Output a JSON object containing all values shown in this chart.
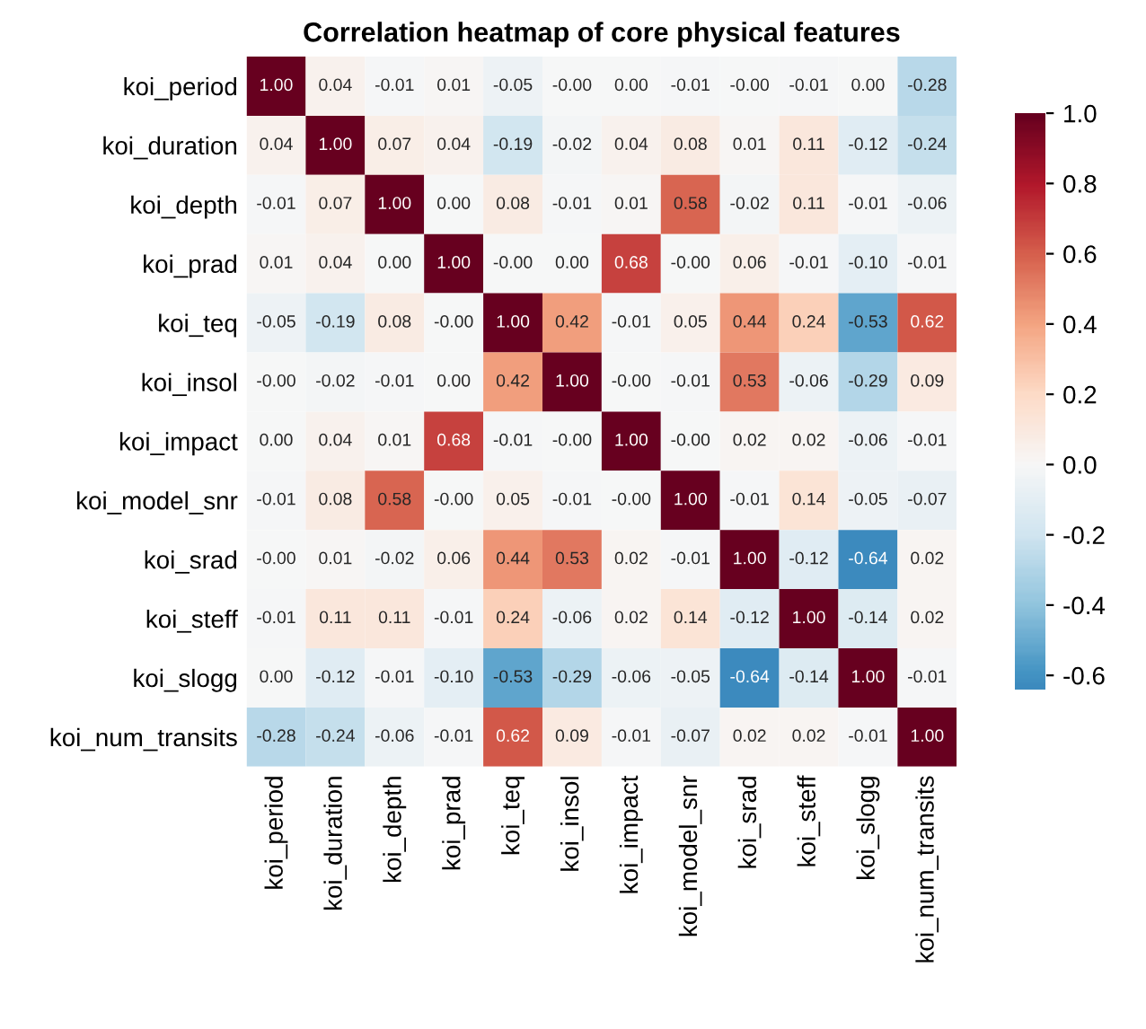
{
  "chart_data": {
    "type": "heatmap",
    "title": "Correlation heatmap of core physical features",
    "categories": [
      "koi_period",
      "koi_duration",
      "koi_depth",
      "koi_prad",
      "koi_teq",
      "koi_insol",
      "koi_impact",
      "koi_model_snr",
      "koi_srad",
      "koi_steff",
      "koi_slogg",
      "koi_num_transits"
    ],
    "y_categories": [
      "koi_period",
      "koi_duration",
      "koi_depth",
      "koi_prad",
      "koi_teq",
      "koi_insol",
      "koi_impact",
      "koi_model_snr",
      "koi_srad",
      "koi_steff",
      "koi_slogg",
      "koi_num_transits"
    ],
    "cells": [
      [
        1.0,
        0.04,
        -0.01,
        0.01,
        -0.05,
        0.0,
        0.0,
        -0.01,
        0.0,
        -0.01,
        0.0,
        -0.28
      ],
      [
        0.04,
        1.0,
        0.07,
        0.04,
        -0.19,
        -0.02,
        0.04,
        0.08,
        0.01,
        0.11,
        -0.12,
        -0.24
      ],
      [
        -0.01,
        0.07,
        1.0,
        0.0,
        0.08,
        -0.01,
        0.01,
        0.58,
        -0.02,
        0.11,
        -0.01,
        -0.06
      ],
      [
        0.01,
        0.04,
        0.0,
        1.0,
        0.0,
        0.0,
        0.68,
        0.0,
        0.06,
        -0.01,
        -0.1,
        -0.01
      ],
      [
        -0.05,
        -0.19,
        0.08,
        0.0,
        1.0,
        0.42,
        -0.01,
        0.05,
        0.44,
        0.24,
        -0.53,
        0.62
      ],
      [
        0.0,
        -0.02,
        -0.01,
        0.0,
        0.42,
        1.0,
        0.0,
        -0.01,
        0.53,
        -0.06,
        -0.29,
        0.09
      ],
      [
        0.0,
        0.04,
        0.01,
        0.68,
        -0.01,
        0.0,
        1.0,
        0.0,
        0.02,
        0.02,
        -0.06,
        -0.01
      ],
      [
        -0.01,
        0.08,
        0.58,
        0.0,
        0.05,
        -0.01,
        0.0,
        1.0,
        -0.01,
        0.14,
        -0.05,
        -0.07
      ],
      [
        0.0,
        0.01,
        -0.02,
        0.06,
        0.44,
        0.53,
        0.02,
        -0.01,
        1.0,
        -0.12,
        -0.64,
        0.02
      ],
      [
        -0.01,
        0.11,
        0.11,
        -0.01,
        0.24,
        -0.06,
        0.02,
        0.14,
        -0.12,
        1.0,
        -0.14,
        0.02
      ],
      [
        0.0,
        -0.12,
        -0.01,
        -0.1,
        -0.53,
        -0.29,
        -0.06,
        -0.05,
        -0.64,
        -0.14,
        1.0,
        -0.01
      ],
      [
        -0.28,
        -0.24,
        -0.06,
        -0.01,
        0.62,
        0.09,
        -0.01,
        -0.07,
        0.02,
        0.02,
        -0.01,
        1.0
      ]
    ],
    "cell_labels": [
      [
        "1.00",
        "0.04",
        "-0.01",
        "0.01",
        "-0.05",
        "-0.00",
        "0.00",
        "-0.01",
        "-0.00",
        "-0.01",
        "0.00",
        "-0.28"
      ],
      [
        "0.04",
        "1.00",
        "0.07",
        "0.04",
        "-0.19",
        "-0.02",
        "0.04",
        "0.08",
        "0.01",
        "0.11",
        "-0.12",
        "-0.24"
      ],
      [
        "-0.01",
        "0.07",
        "1.00",
        "0.00",
        "0.08",
        "-0.01",
        "0.01",
        "0.58",
        "-0.02",
        "0.11",
        "-0.01",
        "-0.06"
      ],
      [
        "0.01",
        "0.04",
        "0.00",
        "1.00",
        "-0.00",
        "0.00",
        "0.68",
        "-0.00",
        "0.06",
        "-0.01",
        "-0.10",
        "-0.01"
      ],
      [
        "-0.05",
        "-0.19",
        "0.08",
        "-0.00",
        "1.00",
        "0.42",
        "-0.01",
        "0.05",
        "0.44",
        "0.24",
        "-0.53",
        "0.62"
      ],
      [
        "-0.00",
        "-0.02",
        "-0.01",
        "0.00",
        "0.42",
        "1.00",
        "-0.00",
        "-0.01",
        "0.53",
        "-0.06",
        "-0.29",
        "0.09"
      ],
      [
        "0.00",
        "0.04",
        "0.01",
        "0.68",
        "-0.01",
        "-0.00",
        "1.00",
        "-0.00",
        "0.02",
        "0.02",
        "-0.06",
        "-0.01"
      ],
      [
        "-0.01",
        "0.08",
        "0.58",
        "-0.00",
        "0.05",
        "-0.01",
        "-0.00",
        "1.00",
        "-0.01",
        "0.14",
        "-0.05",
        "-0.07"
      ],
      [
        "-0.00",
        "0.01",
        "-0.02",
        "0.06",
        "0.44",
        "0.53",
        "0.02",
        "-0.01",
        "1.00",
        "-0.12",
        "-0.64",
        "0.02"
      ],
      [
        "-0.01",
        "0.11",
        "0.11",
        "-0.01",
        "0.24",
        "-0.06",
        "0.02",
        "0.14",
        "-0.12",
        "1.00",
        "-0.14",
        "0.02"
      ],
      [
        "0.00",
        "-0.12",
        "-0.01",
        "-0.10",
        "-0.53",
        "-0.29",
        "-0.06",
        "-0.05",
        "-0.64",
        "-0.14",
        "1.00",
        "-0.01"
      ],
      [
        "-0.28",
        "-0.24",
        "-0.06",
        "-0.01",
        "0.62",
        "0.09",
        "-0.01",
        "-0.07",
        "0.02",
        "0.02",
        "-0.01",
        "1.00"
      ]
    ],
    "clim": [
      -0.64,
      1.0
    ],
    "cticks": [
      -0.6,
      -0.4,
      -0.2,
      {
        "value": 0,
        "label": "0.0"
      },
      0.2,
      0.4,
      0.6,
      0.8,
      {
        "value": 1,
        "label": "1.0"
      }
    ]
  }
}
